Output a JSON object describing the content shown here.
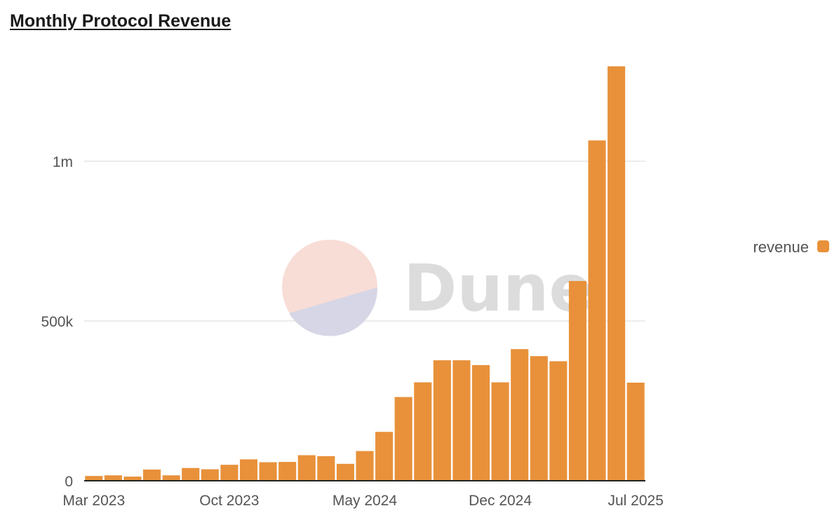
{
  "chart_data": {
    "type": "bar",
    "title": "Monthly Protocol Revenue",
    "xlabel": "",
    "ylabel": "",
    "ylim": [
      0,
      1300000
    ],
    "y_ticks": [
      {
        "value": 0,
        "label": "0"
      },
      {
        "value": 500000,
        "label": "500k"
      },
      {
        "value": 1000000,
        "label": "1m"
      }
    ],
    "x_ticks": [
      {
        "index": 0,
        "label": "Mar 2023"
      },
      {
        "index": 7,
        "label": "Oct 2023"
      },
      {
        "index": 14,
        "label": "May 2024"
      },
      {
        "index": 21,
        "label": "Dec 2024"
      },
      {
        "index": 28,
        "label": "Jul 2025"
      }
    ],
    "categories": [
      "2023-03",
      "2023-04",
      "2023-05",
      "2023-06",
      "2023-07",
      "2023-08",
      "2023-09",
      "2023-10",
      "2023-11",
      "2023-12",
      "2024-01",
      "2024-02",
      "2024-03",
      "2024-04",
      "2024-05",
      "2024-06",
      "2024-07",
      "2024-08",
      "2024-09",
      "2024-10",
      "2024-11",
      "2024-12",
      "2025-01",
      "2025-02",
      "2025-03",
      "2025-04",
      "2025-05",
      "2025-06",
      "2025-07"
    ],
    "series": [
      {
        "name": "revenue",
        "color": "#e8913a",
        "values": [
          15000,
          17000,
          13000,
          35000,
          17000,
          40000,
          36000,
          50000,
          67000,
          58000,
          59000,
          80000,
          77000,
          53000,
          93000,
          153000,
          262000,
          308000,
          377000,
          377000,
          362000,
          308000,
          412000,
          390000,
          374000,
          625000,
          1065000,
          1297000,
          307000
        ]
      }
    ],
    "legend": {
      "position": "right",
      "label": "revenue"
    },
    "grid": true
  },
  "watermark": {
    "text": "Dune",
    "icon": "dune-logo-icon"
  },
  "colors": {
    "bar": "#e8913a",
    "grid": "#e6e6e6",
    "axis": "#222222",
    "watermark_text": "#dcdcdc",
    "logo_top": "#f8ddd6",
    "logo_bottom": "#d6d6e6"
  }
}
